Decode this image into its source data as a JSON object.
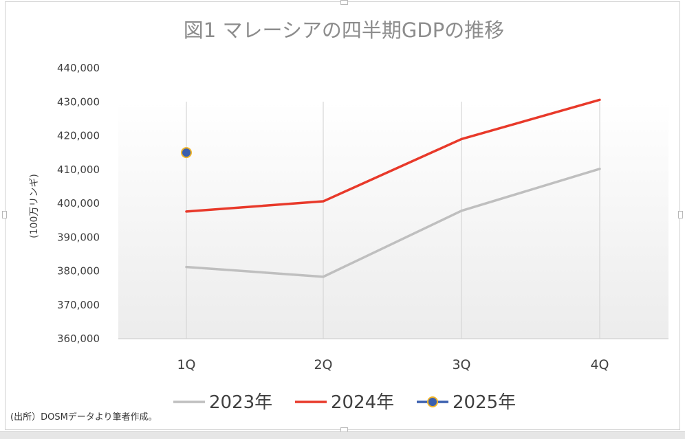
{
  "chart_data": {
    "type": "line",
    "title": "図1 マレーシアの四半期GDPの推移",
    "ylabel": "(100万リンギ)",
    "xlabel": "",
    "categories": [
      "1Q",
      "2Q",
      "3Q",
      "4Q"
    ],
    "ylim": [
      360000,
      440000
    ],
    "yticks": [
      360000,
      370000,
      380000,
      390000,
      400000,
      410000,
      420000,
      430000,
      440000
    ],
    "ytick_labels": [
      "360,000",
      "370,000",
      "380,000",
      "390,000",
      "400,000",
      "410,000",
      "420,000",
      "430,000",
      "440,000"
    ],
    "grid": "vertical",
    "legend_position": "bottom",
    "series": [
      {
        "name": "2023年",
        "color": "#bfbfbf",
        "values": [
          381200,
          378300,
          397800,
          410200
        ]
      },
      {
        "name": "2024年",
        "color": "#e8392a",
        "values": [
          397600,
          400600,
          419000,
          430600
        ]
      },
      {
        "name": "2025年",
        "color": "#3a5fae",
        "marker_edge": "#f0b429",
        "values": [
          415000,
          null,
          null,
          null
        ]
      }
    ],
    "source_note": "(出所）DOSMデータより筆者作成。"
  }
}
